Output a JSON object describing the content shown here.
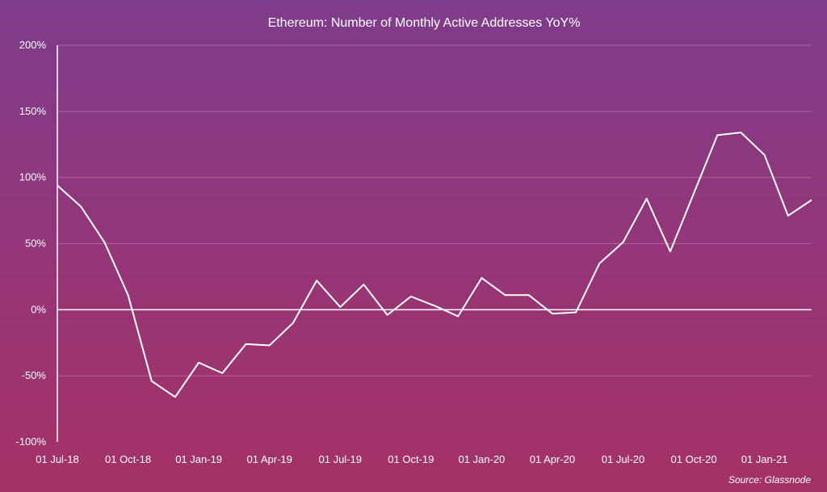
{
  "chart_data": {
    "type": "line",
    "title": "Ethereum: Number of Monthly Active Addresses YoY%",
    "source": "Source: Glassnode",
    "xlabel": "",
    "ylabel": "",
    "ylim": [
      -100,
      200
    ],
    "y_ticks": [
      200,
      150,
      100,
      50,
      0,
      -50,
      -100
    ],
    "y_tick_labels": [
      "200%",
      "150%",
      "100%",
      "50%",
      "0%",
      "-50%",
      "-100%"
    ],
    "x_tick_labels": [
      "01 Jul-18",
      "01 Oct-18",
      "01 Jan-19",
      "01 Apr-19",
      "01 Jul-19",
      "01 Oct-19",
      "01 Jan-20",
      "01 Apr-20",
      "01 Jul-20",
      "01 Oct-20",
      "01 Jan-21"
    ],
    "grid": true,
    "x": [
      "Jul-18",
      "Aug-18",
      "Sep-18",
      "Oct-18",
      "Nov-18",
      "Dec-18",
      "Jan-19",
      "Feb-19",
      "Mar-19",
      "Apr-19",
      "May-19",
      "Jun-19",
      "Jul-19",
      "Aug-19",
      "Sep-19",
      "Oct-19",
      "Nov-19",
      "Dec-19",
      "Jan-20",
      "Feb-20",
      "Mar-20",
      "Apr-20",
      "May-20",
      "Jun-20",
      "Jul-20",
      "Aug-20",
      "Sep-20",
      "Oct-20",
      "Nov-20",
      "Dec-20",
      "Jan-21",
      "Feb-21",
      "Mar-21"
    ],
    "series": [
      {
        "values": [
          94,
          78,
          51,
          11,
          -54,
          -66,
          -40,
          -48,
          -26,
          -27,
          -10,
          22,
          2,
          19,
          -4,
          10,
          3,
          -5,
          24,
          11,
          11,
          -3,
          -2,
          35,
          51,
          84,
          44,
          88,
          132,
          134,
          117,
          71,
          83
        ]
      }
    ],
    "colors": {
      "line": "#ffffff",
      "grid": "#c78ab8",
      "axis": "#ffffff"
    }
  }
}
